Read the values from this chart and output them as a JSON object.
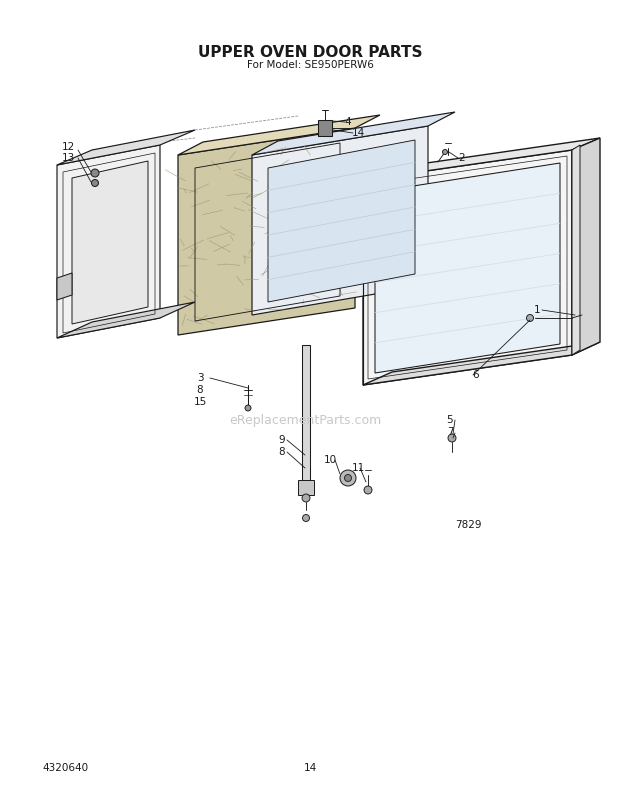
{
  "title": "UPPER OVEN DOOR PARTS",
  "subtitle": "For Model: SE950PERW6",
  "diagram_id": "7829",
  "part_number": "4320640",
  "page": "14",
  "bg_color": "#ffffff",
  "lc": "#1a1a1a",
  "watermark": "eReplacementParts.com"
}
